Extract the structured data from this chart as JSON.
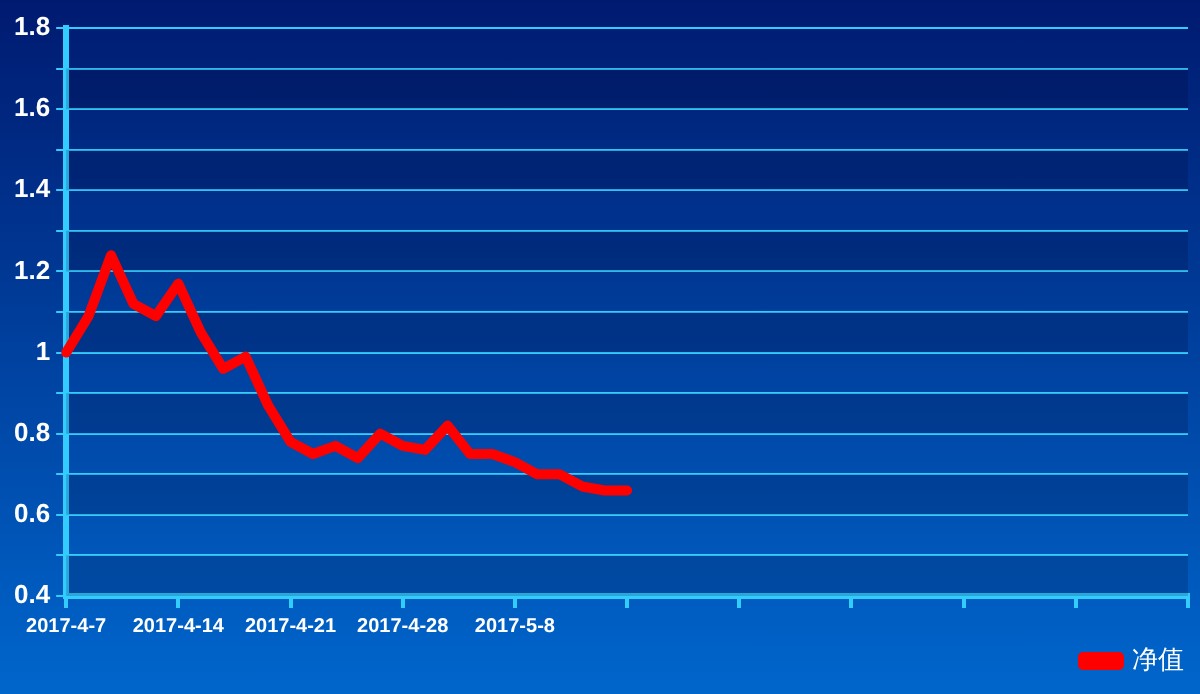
{
  "chart_data": {
    "type": "line",
    "categories": [
      "2017-4-7",
      null,
      null,
      null,
      null,
      "2017-4-14",
      null,
      null,
      null,
      null,
      "2017-4-21",
      null,
      null,
      null,
      null,
      "2017-4-28",
      null,
      null,
      null,
      null,
      "2017-5-8",
      null,
      null,
      null,
      null,
      null,
      null,
      null,
      null,
      null,
      null,
      null,
      null,
      null,
      null,
      null,
      null,
      null,
      null,
      null,
      null,
      null,
      null,
      null,
      null,
      null,
      null,
      null,
      null,
      null,
      null
    ],
    "series": [
      {
        "name": "净值",
        "color": "#ff0000",
        "values": [
          1.0,
          1.09,
          1.24,
          1.12,
          1.09,
          1.17,
          1.05,
          0.96,
          0.99,
          0.87,
          0.78,
          0.75,
          0.77,
          0.74,
          0.8,
          0.77,
          0.76,
          0.82,
          0.75,
          0.75,
          0.73,
          0.7,
          0.7,
          0.67,
          0.66,
          0.66,
          null,
          null,
          null,
          null,
          null,
          null,
          null,
          null,
          null,
          null,
          null,
          null,
          null,
          null,
          null,
          null,
          null,
          null,
          null,
          null,
          null,
          null,
          null,
          null,
          null
        ]
      }
    ],
    "ylim": [
      0.4,
      1.8
    ],
    "yticks": [
      0.4,
      {
        "value": 0.5,
        "label": null
      },
      0.6,
      {
        "value": 0.7,
        "label": null
      },
      0.8,
      {
        "value": 0.9,
        "label": null
      },
      1,
      {
        "value": 1.1,
        "label": null
      },
      1.2,
      {
        "value": 1.3,
        "label": null
      },
      1.4,
      {
        "value": 1.5,
        "label": null
      },
      1.6,
      {
        "value": 1.7,
        "label": null
      },
      1.8
    ],
    "grid": "y",
    "legend": "bottom right",
    "marker": "none",
    "line_style": "solid"
  }
}
